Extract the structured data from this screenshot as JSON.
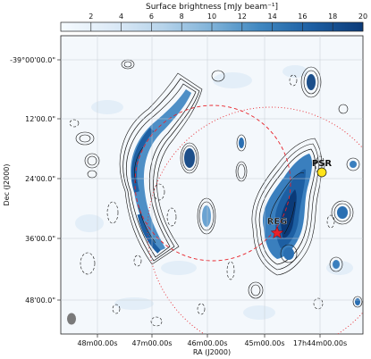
{
  "chart_data": {
    "type": "heatmap",
    "colorbar": {
      "label": "Surface brightness [mJy beam⁻¹]",
      "ticks": [
        "2",
        "4",
        "6",
        "8",
        "10",
        "12",
        "14",
        "16",
        "18",
        "20"
      ],
      "range": [
        0,
        20
      ],
      "colormap": [
        "#f6fbff",
        "#dbe9f6",
        "#b6d3ea",
        "#7fb2d8",
        "#3f87c0",
        "#1d5fa3",
        "#0b3a78"
      ]
    },
    "xlabel": "RA (J2000)",
    "ylabel": "Dec (J2000)",
    "x_ticks": [
      "48m00.00s",
      "47m00.00s",
      "46m00.00s",
      "45m00.00s",
      "17h44m00.00s"
    ],
    "y_ticks": [
      "-39°00'00.0\"",
      "12'00.0\"",
      "24'00.0\"",
      "36'00.0\"",
      "48'00.0\""
    ],
    "grid": true,
    "annotations": [
      {
        "label": "REG",
        "marker": "red-star",
        "color": "#e8222a"
      },
      {
        "label": "PSR",
        "marker": "yellow-circle",
        "color": "#ffe31a"
      }
    ],
    "overlays": [
      {
        "type": "circle",
        "style": "dashed",
        "color": "#e8222a"
      },
      {
        "type": "circle",
        "style": "dotted",
        "color": "#e8222a"
      }
    ],
    "beam": {
      "color": "#7a7a7a",
      "position": "bottom-left"
    }
  }
}
